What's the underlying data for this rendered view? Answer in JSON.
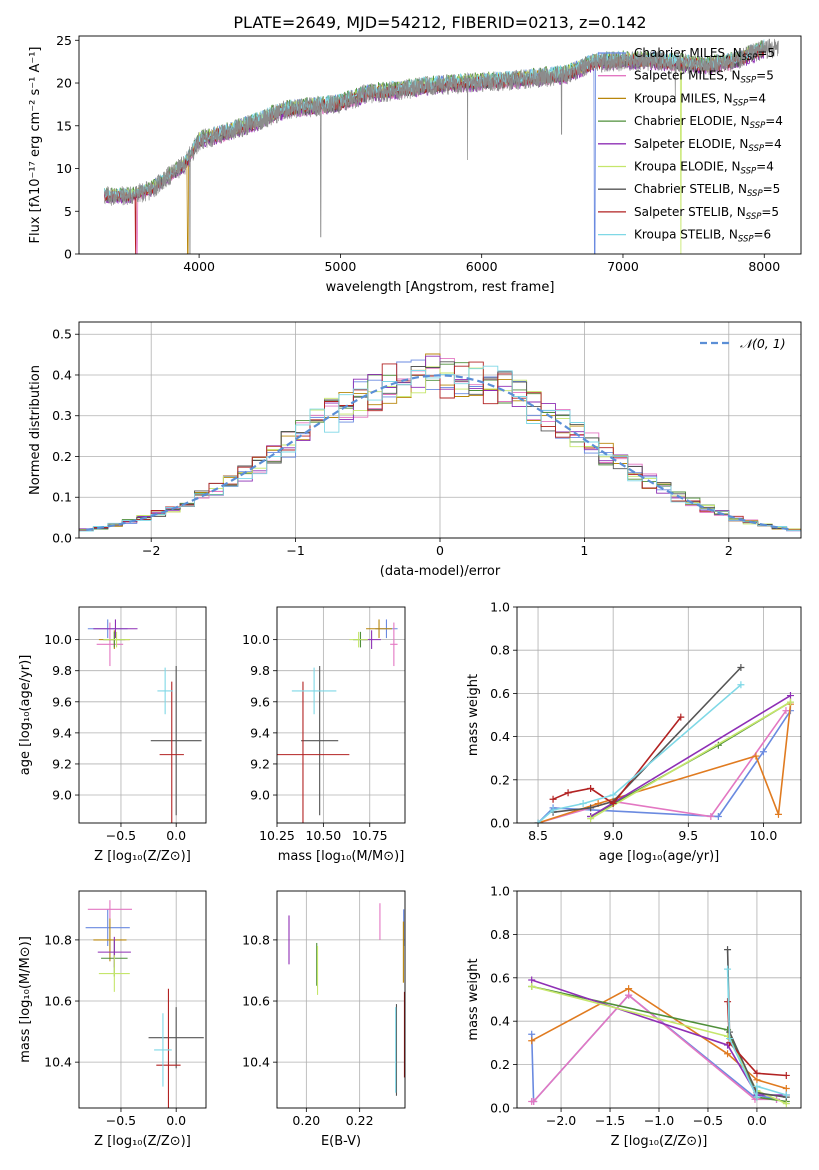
{
  "figure": {
    "title": "PLATE=2649, MJD=54212, FIBERID=0213, z=0.142"
  },
  "colors": {
    "Chabrier MILES": "#6a8ae0",
    "Salpeter MILES": "#e377c2",
    "Kroupa MILES": "#b8860b",
    "Chabrier ELODIE": "#4f8f3a",
    "Salpeter ELODIE": "#8e2fb5",
    "Kroupa ELODIE": "#c5e66b",
    "Chabrier STELIB": "#555555",
    "Salpeter STELIB": "#b22222",
    "Kroupa STELIB": "#7fd8e6",
    "orange": "#e07b20",
    "normal_curve": "#5b8fd6"
  },
  "chart_data": [
    {
      "id": "spectrum",
      "type": "line",
      "title": "PLATE=2649, MJD=54212, FIBERID=0213, z=0.142",
      "xlabel": "wavelength [Angstrom, rest frame]",
      "ylabel": "Flux [fλ10⁻¹⁷ erg cm⁻² s⁻¹ A⁻¹]",
      "xlim": [
        3150,
        8260
      ],
      "ylim": [
        0,
        25.5
      ],
      "xticks": [
        4000,
        5000,
        6000,
        7000,
        8000
      ],
      "yticks": [
        0,
        5,
        10,
        15,
        20,
        25
      ],
      "grid": false,
      "legend": "upper right",
      "legend_entries": [
        {
          "label": "Chabrier MILES, N",
          "sub": "SSP",
          "eq": "=5",
          "color_key": "Chabrier MILES"
        },
        {
          "label": "Salpeter MILES, N",
          "sub": "SSP",
          "eq": "=5",
          "color_key": "Salpeter MILES"
        },
        {
          "label": "Kroupa MILES, N",
          "sub": "SSP",
          "eq": "=4",
          "color_key": "Kroupa MILES"
        },
        {
          "label": "Chabrier ELODIE, N",
          "sub": "SSP",
          "eq": "=4",
          "color_key": "Chabrier ELODIE"
        },
        {
          "label": "Salpeter ELODIE, N",
          "sub": "SSP",
          "eq": "=4",
          "color_key": "Salpeter ELODIE"
        },
        {
          "label": "Kroupa ELODIE, N",
          "sub": "SSP",
          "eq": "=4",
          "color_key": "Kroupa ELODIE"
        },
        {
          "label": "Chabrier STELIB, N",
          "sub": "SSP",
          "eq": "=5",
          "color_key": "Chabrier STELIB"
        },
        {
          "label": "Salpeter STELIB, N",
          "sub": "SSP",
          "eq": "=5",
          "color_key": "Salpeter STELIB"
        },
        {
          "label": "Kroupa STELIB, N",
          "sub": "SSP",
          "eq": "=6",
          "color_key": "Kroupa STELIB"
        }
      ],
      "spectrum_trend": {
        "x": [
          3330,
          3500,
          3650,
          3900,
          4000,
          4200,
          4400,
          4600,
          4800,
          5000,
          5200,
          5400,
          5600,
          5800,
          6000,
          6200,
          6400,
          6600,
          6800,
          7000,
          7200,
          7400,
          7600,
          7800,
          8000
        ],
        "y": [
          6.8,
          6.8,
          7.4,
          10.5,
          13.3,
          14.2,
          15.4,
          16.8,
          17.2,
          17.6,
          18.8,
          19.1,
          19.6,
          19.9,
          20.1,
          20.3,
          20.6,
          21.0,
          22.4,
          22.6,
          22.6,
          22.3,
          22.0,
          22.6,
          24.0
        ]
      },
      "model_offsets": [
        0.3,
        -0.2,
        0.1,
        0.4,
        -0.3,
        0.2,
        -0.1,
        0.0,
        0.35
      ],
      "model_breaks": [
        {
          "series": "Kroupa MILES",
          "x": 3920
        },
        {
          "series": "Salpeter MILES",
          "x": 3560
        },
        {
          "series": "Chabrier MILES",
          "x": 6800
        },
        {
          "series": "Kroupa ELODIE",
          "x": 7410
        },
        {
          "series": "Salpeter STELIB",
          "x": 3550
        }
      ]
    },
    {
      "id": "residuals",
      "type": "line",
      "xlabel": "(data-model)/error",
      "ylabel": "Normed distribution",
      "xlim": [
        -2.5,
        2.5
      ],
      "ylim": [
        0,
        0.53
      ],
      "xticks": [
        -2,
        -1,
        0,
        1,
        2
      ],
      "xtick_labels": [
        "−2",
        "−1",
        "0",
        "1",
        "2"
      ],
      "yticks": [
        0.0,
        0.1,
        0.2,
        0.3,
        0.4,
        0.5
      ],
      "ytick_labels": [
        "0.0",
        "0.1",
        "0.2",
        "0.3",
        "0.4",
        "0.5"
      ],
      "grid": true,
      "legend": "upper right",
      "legend_entries": [
        {
          "label": "𝒩(0, 1)",
          "color_key": "normal_curve"
        }
      ],
      "bin_width": 0.1,
      "note": "step histograms of the 9 model fits; each is the normal density plus small fluctuations",
      "normal_curve": {
        "mean": 0,
        "sigma": 1
      }
    },
    {
      "id": "age_vs_Z",
      "type": "scatter",
      "xlabel": "Z [log₁₀(Z/Z⊙)]",
      "ylabel": "age  [log₁₀(age/yr)]",
      "xlim": [
        -0.88,
        0.27
      ],
      "ylim": [
        8.82,
        10.21
      ],
      "xticks": [
        -0.5,
        0.0
      ],
      "xtick_labels": [
        "−0.5",
        "0.0"
      ],
      "yticks": [
        9.0,
        9.2,
        9.4,
        9.6,
        9.8,
        10.0
      ],
      "ytick_labels": [
        "9.0",
        "9.2",
        "9.4",
        "9.6",
        "9.8",
        "10.0"
      ],
      "grid": true,
      "points": [
        {
          "s": "Chabrier MILES",
          "x": -0.62,
          "xe": 0.18,
          "y": 10.07,
          "ye": 0.06
        },
        {
          "s": "Salpeter MILES",
          "x": -0.6,
          "xe": 0.12,
          "y": 9.97,
          "ye": 0.14
        },
        {
          "s": "Kroupa MILES",
          "x": -0.56,
          "xe": 0.14,
          "y": 10.0,
          "ye": 0.06
        },
        {
          "s": "Chabrier ELODIE",
          "x": -0.56,
          "xe": 0.1,
          "y": 10.0,
          "ye": 0.05
        },
        {
          "s": "Salpeter ELODIE",
          "x": -0.55,
          "xe": 0.2,
          "y": 10.07,
          "ye": 0.06
        },
        {
          "s": "Kroupa ELODIE",
          "x": -0.54,
          "xe": 0.12,
          "y": 10.0,
          "ye": 0.05
        },
        {
          "s": "Chabrier STELIB",
          "x": 0.0,
          "xe": 0.23,
          "y": 9.35,
          "ye": 0.48
        },
        {
          "s": "Salpeter STELIB",
          "x": -0.04,
          "xe": 0.11,
          "y": 9.26,
          "ye": 0.47
        },
        {
          "s": "Kroupa STELIB",
          "x": -0.1,
          "xe": 0.07,
          "y": 9.67,
          "ye": 0.15
        }
      ]
    },
    {
      "id": "age_vs_mass",
      "type": "scatter",
      "xlabel": "mass [log₁₀(M/M⊙)]",
      "xlim": [
        10.25,
        10.94
      ],
      "ylim": [
        8.82,
        10.21
      ],
      "xticks": [
        10.25,
        10.5,
        10.75
      ],
      "xtick_labels": [
        "10.25",
        "10.50",
        "10.75"
      ],
      "yticks": [
        9.0,
        9.2,
        9.4,
        9.6,
        9.8,
        10.0
      ],
      "ytick_labels": [
        "9.0",
        "9.2",
        "9.4",
        "9.6",
        "9.8",
        "10.0"
      ],
      "grid": true,
      "points": [
        {
          "s": "Chabrier MILES",
          "x": 10.84,
          "xe": 0.06,
          "y": 10.07,
          "ye": 0.06
        },
        {
          "s": "Salpeter MILES",
          "x": 10.88,
          "xe": 0.02,
          "y": 9.97,
          "ye": 0.14
        },
        {
          "s": "Kroupa MILES",
          "x": 10.8,
          "xe": 0.07,
          "y": 10.07,
          "ye": 0.06
        },
        {
          "s": "Chabrier ELODIE",
          "x": 10.7,
          "xe": 0.04,
          "y": 10.0,
          "ye": 0.05
        },
        {
          "s": "Salpeter ELODIE",
          "x": 10.76,
          "xe": 0.05,
          "y": 10.0,
          "ye": 0.06
        },
        {
          "s": "Kroupa ELODIE",
          "x": 10.69,
          "xe": 0.05,
          "y": 10.0,
          "ye": 0.05
        },
        {
          "s": "Chabrier STELIB",
          "x": 10.48,
          "xe": 0.1,
          "y": 9.35,
          "ye": 0.48
        },
        {
          "s": "Salpeter STELIB",
          "x": 10.39,
          "xe": 0.25,
          "y": 9.26,
          "ye": 0.47
        },
        {
          "s": "Kroupa STELIB",
          "x": 10.45,
          "xe": 0.12,
          "y": 9.67,
          "ye": 0.15
        }
      ]
    },
    {
      "id": "weight_vs_age",
      "type": "line",
      "xlabel": "age  [log₁₀(age/yr)]",
      "ylabel": "mass weight",
      "xlim": [
        8.36,
        10.25
      ],
      "ylim": [
        0.0,
        1.0
      ],
      "xticks": [
        8.5,
        9.0,
        9.5,
        10.0
      ],
      "xtick_labels": [
        "8.5",
        "9.0",
        "9.5",
        "10.0"
      ],
      "yticks": [
        0.0,
        0.2,
        0.4,
        0.6,
        0.8,
        1.0
      ],
      "ytick_labels": [
        "0.0",
        "0.2",
        "0.4",
        "0.6",
        "0.8",
        "1.0"
      ],
      "grid": true,
      "series": [
        {
          "name": "Chabrier MILES",
          "x": [
            8.5,
            8.6,
            9.7,
            10.0,
            10.18
          ],
          "y": [
            0.0,
            0.07,
            0.03,
            0.33,
            0.52
          ]
        },
        {
          "name": "Salpeter MILES",
          "x": [
            8.5,
            9.0,
            9.65,
            10.15
          ],
          "y": [
            0.0,
            0.1,
            0.03,
            0.52
          ]
        },
        {
          "name": "orange",
          "x": [
            8.5,
            8.9,
            9.95,
            10.1,
            10.18
          ],
          "y": [
            0.0,
            0.09,
            0.31,
            0.04,
            0.55
          ]
        },
        {
          "name": "Chabrier ELODIE",
          "x": [
            8.85,
            9.7,
            10.18
          ],
          "y": [
            0.03,
            0.36,
            0.56
          ]
        },
        {
          "name": "Salpeter ELODIE",
          "x": [
            8.85,
            10.18
          ],
          "y": [
            0.03,
            0.59
          ]
        },
        {
          "name": "Kroupa ELODIE",
          "x": [
            8.85,
            10.18
          ],
          "y": [
            0.02,
            0.56
          ]
        },
        {
          "name": "Chabrier STELIB",
          "x": [
            8.6,
            8.85,
            9.0,
            9.85
          ],
          "y": [
            0.05,
            0.07,
            0.1,
            0.72
          ]
        },
        {
          "name": "Salpeter STELIB",
          "x": [
            8.6,
            8.7,
            8.85,
            9.0,
            9.45
          ],
          "y": [
            0.11,
            0.14,
            0.16,
            0.09,
            0.49
          ]
        },
        {
          "name": "Kroupa STELIB",
          "x": [
            8.5,
            8.6,
            8.8,
            9.0,
            9.85
          ],
          "y": [
            0.0,
            0.06,
            0.09,
            0.13,
            0.64
          ]
        }
      ]
    },
    {
      "id": "mass_vs_Z",
      "type": "scatter",
      "xlabel": "Z [log₁₀(Z/Z⊙)]",
      "ylabel": "mass [log₁₀(M/M⊙)]",
      "xlim": [
        -0.88,
        0.27
      ],
      "ylim": [
        10.25,
        10.96
      ],
      "xticks": [
        -0.5,
        0.0
      ],
      "xtick_labels": [
        "−0.5",
        "0.0"
      ],
      "yticks": [
        10.4,
        10.6,
        10.8
      ],
      "ytick_labels": [
        "10.4",
        "10.6",
        "10.8"
      ],
      "grid": true,
      "points": [
        {
          "s": "Chabrier MILES",
          "x": -0.62,
          "xe": 0.2,
          "y": 10.84,
          "ye": 0.06
        },
        {
          "s": "Salpeter MILES",
          "x": -0.6,
          "xe": 0.2,
          "y": 10.9,
          "ye": 0.03
        },
        {
          "s": "Kroupa MILES",
          "x": -0.6,
          "xe": 0.15,
          "y": 10.8,
          "ye": 0.07
        },
        {
          "s": "Chabrier ELODIE",
          "x": -0.56,
          "xe": 0.12,
          "y": 10.74,
          "ye": 0.06
        },
        {
          "s": "Salpeter ELODIE",
          "x": -0.56,
          "xe": 0.15,
          "y": 10.76,
          "ye": 0.05
        },
        {
          "s": "Kroupa ELODIE",
          "x": -0.56,
          "xe": 0.14,
          "y": 10.69,
          "ye": 0.06
        },
        {
          "s": "Chabrier STELIB",
          "x": 0.0,
          "xe": 0.25,
          "y": 10.48,
          "ye": 0.1
        },
        {
          "s": "Salpeter STELIB",
          "x": -0.07,
          "xe": 0.11,
          "y": 10.39,
          "ye": 0.25
        },
        {
          "s": "Kroupa STELIB",
          "x": -0.12,
          "xe": 0.08,
          "y": 10.44,
          "ye": 0.12
        }
      ]
    },
    {
      "id": "mass_vs_EBV",
      "type": "scatter",
      "xlabel": "E(B-V)",
      "xlim": [
        0.189,
        0.237
      ],
      "ylim": [
        10.25,
        10.96
      ],
      "xticks": [
        0.2,
        0.22
      ],
      "xtick_labels": [
        "0.20",
        "0.22"
      ],
      "yticks": [
        10.4,
        10.6,
        10.8
      ],
      "ytick_labels": [
        "10.4",
        "10.6",
        "10.8"
      ],
      "grid": true,
      "points": [
        {
          "s": "Chabrier MILES",
          "x": 0.2365,
          "y": 10.84,
          "ye": 0.06
        },
        {
          "s": "Salpeter MILES",
          "x": 0.2276,
          "y": 10.86,
          "ye": 0.06
        },
        {
          "s": "Kroupa MILES",
          "x": 0.2364,
          "y": 10.76,
          "ye": 0.1
        },
        {
          "s": "Chabrier ELODIE",
          "x": 0.2039,
          "y": 10.72,
          "ye": 0.07
        },
        {
          "s": "Salpeter ELODIE",
          "x": 0.1935,
          "y": 10.8,
          "ye": 0.08
        },
        {
          "s": "Kroupa ELODIE",
          "x": 0.2042,
          "y": 10.7,
          "ye": 0.08
        },
        {
          "s": "Chabrier STELIB",
          "x": 0.2338,
          "y": 10.44,
          "ye": 0.15
        },
        {
          "s": "Salpeter STELIB",
          "x": 0.2368,
          "y": 10.49,
          "ye": 0.14
        },
        {
          "s": "Kroupa STELIB",
          "x": 0.2335,
          "y": 10.44,
          "ye": 0.14
        }
      ]
    },
    {
      "id": "weight_vs_Z",
      "type": "line",
      "xlabel": "Z [log₁₀(Z/Z⊙)]",
      "ylabel": "mass weight",
      "xlim": [
        -2.45,
        0.45
      ],
      "ylim": [
        0.0,
        1.0
      ],
      "xticks": [
        -2.0,
        -1.5,
        -1.0,
        -0.5,
        0.0
      ],
      "xtick_labels": [
        "−2.0",
        "−1.5",
        "−1.0",
        "−0.5",
        "0.0"
      ],
      "yticks": [
        0.0,
        0.2,
        0.4,
        0.6,
        0.8,
        1.0
      ],
      "ytick_labels": [
        "0.0",
        "0.2",
        "0.4",
        "0.6",
        "0.8",
        "1.0"
      ],
      "grid": true,
      "series": [
        {
          "name": "Chabrier MILES",
          "x": [
            -2.3,
            -2.28,
            -1.31,
            -0.02,
            0.0,
            0.2
          ],
          "y": [
            0.34,
            0.03,
            0.52,
            0.05,
            0.06,
            0.04
          ]
        },
        {
          "name": "Salpeter MILES",
          "x": [
            -2.3,
            -2.28,
            -1.31,
            -0.02,
            0.2
          ],
          "y": [
            0.03,
            0.03,
            0.52,
            0.04,
            0.04
          ]
        },
        {
          "name": "orange",
          "x": [
            -2.3,
            -1.31,
            -0.3,
            0.0,
            0.3
          ],
          "y": [
            0.31,
            0.55,
            0.25,
            0.13,
            0.09
          ]
        },
        {
          "name": "Chabrier ELODIE",
          "x": [
            -2.3,
            -0.3,
            0.0,
            0.3
          ],
          "y": [
            0.56,
            0.36,
            0.05,
            0.03
          ]
        },
        {
          "name": "Salpeter ELODIE",
          "x": [
            -2.3,
            -0.3,
            0.0,
            0.3
          ],
          "y": [
            0.59,
            0.29,
            0.06,
            0.06
          ]
        },
        {
          "name": "Kroupa ELODIE",
          "x": [
            -2.3,
            -0.3,
            0.0,
            0.3
          ],
          "y": [
            0.56,
            0.33,
            0.08,
            0.02
          ]
        },
        {
          "name": "Chabrier STELIB",
          "x": [
            -0.3,
            -0.28,
            0.0,
            0.3
          ],
          "y": [
            0.73,
            0.35,
            0.07,
            0.05
          ]
        },
        {
          "name": "Salpeter STELIB",
          "x": [
            -0.3,
            -0.28,
            0.0,
            0.3
          ],
          "y": [
            0.49,
            0.3,
            0.16,
            0.15
          ]
        },
        {
          "name": "Kroupa STELIB",
          "x": [
            -0.3,
            -0.28,
            0.0,
            0.0,
            0.3
          ],
          "y": [
            0.64,
            0.32,
            0.05,
            0.1,
            0.06
          ]
        }
      ]
    }
  ]
}
